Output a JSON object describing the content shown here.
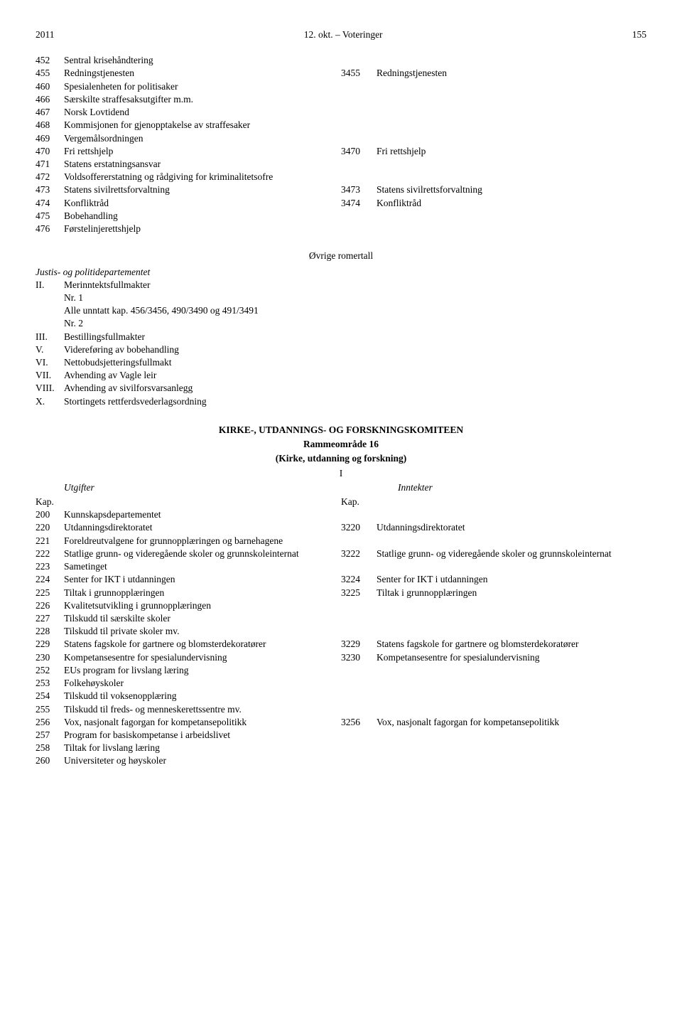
{
  "header": {
    "year": "2011",
    "center": "12. okt. – Voteringer",
    "page": "155"
  },
  "block1": {
    "rows": [
      {
        "ln": "452",
        "ll": "Sentral krisehåndtering",
        "rn": "",
        "rl": ""
      },
      {
        "ln": "455",
        "ll": "Redningstjenesten",
        "rn": "3455",
        "rl": "Redningstjenesten"
      },
      {
        "ln": "460",
        "ll": "Spesialenheten for politisaker",
        "rn": "",
        "rl": ""
      },
      {
        "ln": "466",
        "ll": "Særskilte straffesaksutgifter m.m.",
        "rn": "",
        "rl": ""
      },
      {
        "ln": "467",
        "ll": "Norsk Lovtidend",
        "rn": "",
        "rl": ""
      },
      {
        "ln": "468",
        "ll": "Kommisjonen for gjenopptakelse av straffesaker",
        "rn": "",
        "rl": ""
      },
      {
        "ln": "469",
        "ll": "Vergemålsordningen",
        "rn": "",
        "rl": ""
      },
      {
        "ln": "470",
        "ll": "Fri rettshjelp",
        "rn": "3470",
        "rl": "Fri rettshjelp"
      },
      {
        "ln": "471",
        "ll": "Statens erstatningsansvar",
        "rn": "",
        "rl": ""
      },
      {
        "ln": "472",
        "ll": "Voldsoffererstatning og rådgiving for kriminalitetsofre",
        "rn": "",
        "rl": ""
      },
      {
        "ln": "473",
        "ll": "Statens sivilrettsforvaltning",
        "rn": "3473",
        "rl": "Statens sivilrettsforvaltning"
      },
      {
        "ln": "474",
        "ll": "Konfliktråd",
        "rn": "3474",
        "rl": "Konfliktråd"
      },
      {
        "ln": "475",
        "ll": "Bobehandling",
        "rn": "",
        "rl": ""
      },
      {
        "ln": "476",
        "ll": "Førstelinjerettshjelp",
        "rn": "",
        "rl": ""
      }
    ]
  },
  "roman": {
    "heading": "Øvrige romertall",
    "dept": "Justis- og politidepartementet",
    "items": [
      {
        "num": "II.",
        "label": "Merinntektsfullmakter"
      },
      {
        "num": "",
        "label": "Nr. 1"
      },
      {
        "num": "",
        "label": "Alle unntatt kap. 456/3456, 490/3490 og 491/3491"
      },
      {
        "num": "",
        "label": "Nr. 2"
      },
      {
        "num": "III.",
        "label": "Bestillingsfullmakter"
      },
      {
        "num": "V.",
        "label": "Videreføring av bobehandling"
      },
      {
        "num": "VI.",
        "label": "Nettobudsjetteringsfullmakt"
      },
      {
        "num": "VII.",
        "label": "Avhending av Vagle leir"
      },
      {
        "num": "VIII.",
        "label": "Avhending av sivilforsvarsanlegg"
      },
      {
        "num": "X.",
        "label": "Stortingets rettferdsvederlagsordning"
      }
    ]
  },
  "section2": {
    "title": "KIRKE-, UTDANNINGS- OG FORSKNINGSKOMITEEN",
    "sub": "Rammeområde 16",
    "paren": "(Kirke, utdanning og forskning)",
    "I": "I",
    "headers": {
      "left": "Utgifter",
      "right": "Inntekter"
    },
    "kap": {
      "left": "Kap.",
      "right": "Kap."
    },
    "rows": [
      {
        "ln": "200",
        "ll": "Kunnskapsdepartementet",
        "rn": "",
        "rl": ""
      },
      {
        "ln": "220",
        "ll": "Utdanningsdirektoratet",
        "rn": "3220",
        "rl": "Utdanningsdirektoratet"
      },
      {
        "ln": "221",
        "ll": "Foreldreutvalgene for grunnopplæringen og barnehagene",
        "rn": "",
        "rl": ""
      },
      {
        "ln": "222",
        "ll": "Statlige grunn- og videregående skoler og grunnskoleinternat",
        "rn": "3222",
        "rl": "Statlige grunn- og videregående skoler og grunnskoleinternat"
      },
      {
        "ln": "223",
        "ll": "Sametinget",
        "rn": "",
        "rl": ""
      },
      {
        "ln": "224",
        "ll": "Senter for IKT i utdanningen",
        "rn": "3224",
        "rl": "Senter for IKT i utdanningen"
      },
      {
        "ln": "225",
        "ll": "Tiltak i grunnopplæringen",
        "rn": "3225",
        "rl": "Tiltak i grunnopplæringen"
      },
      {
        "ln": "226",
        "ll": "Kvalitetsutvikling i grunnopplæringen",
        "rn": "",
        "rl": ""
      },
      {
        "ln": "227",
        "ll": "Tilskudd til særskilte skoler",
        "rn": "",
        "rl": ""
      },
      {
        "ln": "228",
        "ll": "Tilskudd til private skoler mv.",
        "rn": "",
        "rl": ""
      },
      {
        "ln": "229",
        "ll": "Statens fagskole for gartnere og blomsterdekoratører",
        "rn": "3229",
        "rl": "Statens fagskole for gartnere og blomsterdekoratører"
      },
      {
        "ln": "230",
        "ll": "Kompetansesentre for spesialundervisning",
        "rn": "3230",
        "rl": "Kompetansesentre for spesialundervisning"
      },
      {
        "ln": "252",
        "ll": "EUs program for livslang læring",
        "rn": "",
        "rl": ""
      },
      {
        "ln": "253",
        "ll": "Folkehøyskoler",
        "rn": "",
        "rl": ""
      },
      {
        "ln": "254",
        "ll": "Tilskudd til voksenopplæring",
        "rn": "",
        "rl": ""
      },
      {
        "ln": "255",
        "ll": "Tilskudd til freds- og menneskerettssentre mv.",
        "rn": "",
        "rl": ""
      },
      {
        "ln": "256",
        "ll": "Vox, nasjonalt fagorgan for kompetansepolitikk",
        "rn": "3256",
        "rl": "Vox, nasjonalt fagorgan for kompetansepolitikk"
      },
      {
        "ln": "257",
        "ll": "Program for basiskompetanse i arbeidslivet",
        "rn": "",
        "rl": ""
      },
      {
        "ln": "258",
        "ll": "Tiltak for livslang læring",
        "rn": "",
        "rl": ""
      },
      {
        "ln": "260",
        "ll": "Universiteter og høyskoler",
        "rn": "",
        "rl": ""
      }
    ]
  }
}
